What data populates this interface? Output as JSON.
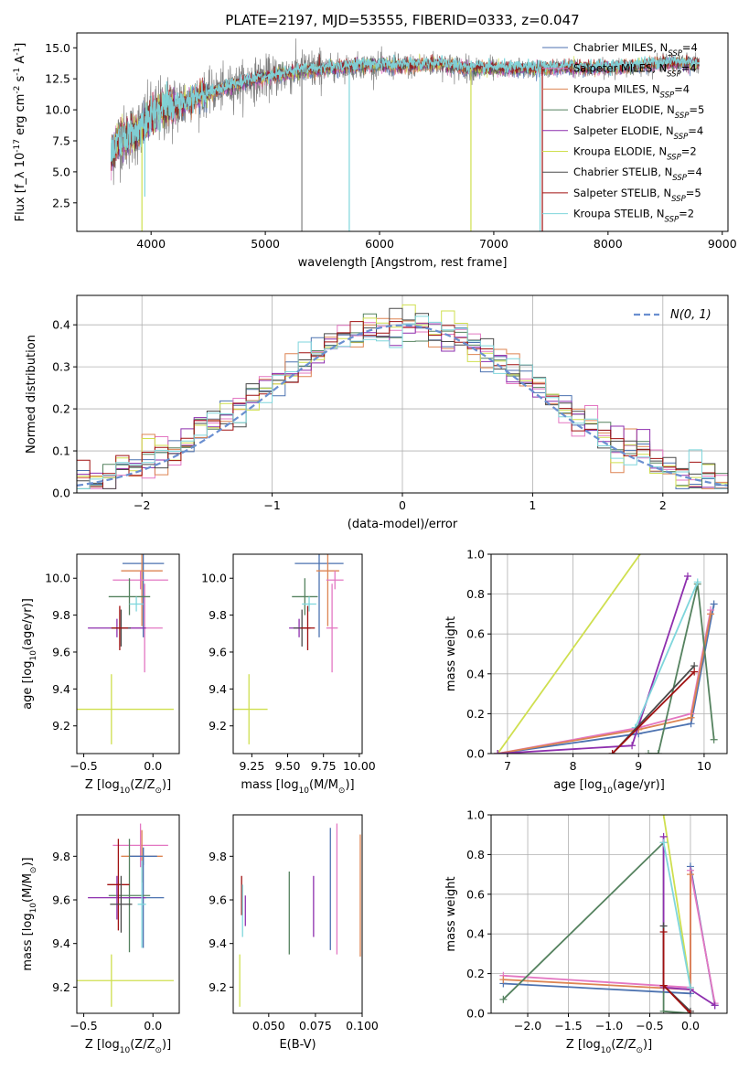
{
  "colors": {
    "chabrier_miles": "#4c72b0",
    "salpeter_miles": "#e377c2",
    "kroupa_miles": "#dd8452",
    "chabrier_elodie": "#55825f",
    "salpeter_elodie": "#8e2fae",
    "kroupa_elodie": "#cfdf4f",
    "chabrier_stelib": "#4a4a4a",
    "salpeter_stelib": "#a01010",
    "kroupa_stelib": "#7fd6dc",
    "gray_spectrum": "#808080",
    "normal": "#6a8fd0"
  },
  "chart_data": [
    {
      "type": "line",
      "title": "PLATE=2197, MJD=53555, FIBERID=0333, z=0.047",
      "xlabel": "wavelength [Angstrom, rest frame]",
      "ylabel": "Flux [f_λ 10^-17 erg cm^-2 s^-1 A^-1]",
      "xlim": [
        3350,
        9050
      ],
      "ylim": [
        0.2,
        16.2
      ],
      "xticks": [
        4000,
        5000,
        6000,
        7000,
        8000,
        9000
      ],
      "yticks": [
        2.5,
        5.0,
        7.5,
        10.0,
        12.5,
        15.0
      ],
      "xtick_labels": [
        "4000",
        "5000",
        "6000",
        "7000",
        "8000",
        "9000"
      ],
      "ytick_labels": [
        "2.5",
        "5.0",
        "7.5",
        "10.0",
        "12.5",
        "15.0"
      ],
      "legend_position": "top-right",
      "series": [
        {
          "name": "Chabrier MILES, N",
          "sub": "SSP",
          "suffix": "=4",
          "color_key": "chabrier_miles"
        },
        {
          "name": "Salpeter MILES, N",
          "sub": "SSP",
          "suffix": "=4",
          "color_key": "salpeter_miles"
        },
        {
          "name": "Kroupa MILES, N",
          "sub": "SSP",
          "suffix": "=4",
          "color_key": "kroupa_miles"
        },
        {
          "name": "Chabrier ELODIE, N",
          "sub": "SSP",
          "suffix": "=5",
          "color_key": "chabrier_elodie"
        },
        {
          "name": "Salpeter ELODIE, N",
          "sub": "SSP",
          "suffix": "=4",
          "color_key": "salpeter_elodie"
        },
        {
          "name": "Kroupa ELODIE, N",
          "sub": "SSP",
          "suffix": "=2",
          "color_key": "kroupa_elodie"
        },
        {
          "name": "Chabrier STELIB, N",
          "sub": "SSP",
          "suffix": "=4",
          "color_key": "chabrier_stelib"
        },
        {
          "name": "Salpeter STELIB, N",
          "sub": "SSP",
          "suffix": "=5",
          "color_key": "salpeter_stelib"
        },
        {
          "name": "Kroupa STELIB, N",
          "sub": "SSP",
          "suffix": "=2",
          "color_key": "kroupa_stelib"
        }
      ],
      "continuum_knots": [
        [
          3650,
          6.0
        ],
        [
          3700,
          7.5
        ],
        [
          3800,
          7.8
        ],
        [
          3900,
          8.4
        ],
        [
          4000,
          9.5
        ],
        [
          4100,
          10.0
        ],
        [
          4300,
          10.6
        ],
        [
          4500,
          11.3
        ],
        [
          4700,
          11.9
        ],
        [
          4850,
          12.3
        ],
        [
          5000,
          12.6
        ],
        [
          5300,
          13.1
        ],
        [
          5600,
          13.4
        ],
        [
          5900,
          13.6
        ],
        [
          6200,
          13.5
        ],
        [
          6500,
          13.7
        ],
        [
          6800,
          13.3
        ],
        [
          7100,
          13.3
        ],
        [
          7400,
          13.3
        ],
        [
          7600,
          13.4
        ],
        [
          7800,
          13.4
        ],
        [
          8000,
          13.4
        ],
        [
          8200,
          13.5
        ],
        [
          8500,
          13.8
        ],
        [
          8800,
          13.7
        ]
      ],
      "sharp_lines": [
        {
          "x": 3920,
          "y_low": 0.2,
          "color_key": "kroupa_elodie"
        },
        {
          "x": 3945,
          "y_low": 3.0,
          "color_key": "kroupa_stelib"
        },
        {
          "x": 5320,
          "y_low": 0.2,
          "color_key": "gray_spectrum"
        },
        {
          "x": 5735,
          "y_low": 0.2,
          "color_key": "kroupa_stelib"
        },
        {
          "x": 6800,
          "y_low": 0.2,
          "color_key": "kroupa_elodie"
        },
        {
          "x": 7405,
          "y_low": 0.2,
          "color_key": "kroupa_stelib"
        },
        {
          "x": 7425,
          "y_low": 0.2,
          "color_key": "salpeter_stelib"
        }
      ]
    },
    {
      "type": "histogram",
      "xlabel": "(data-model)/error",
      "ylabel": "Normed distribution",
      "xlim": [
        -2.5,
        2.5
      ],
      "ylim": [
        0,
        0.47
      ],
      "xticks": [
        -2,
        -1,
        0,
        1,
        2
      ],
      "xtick_labels": [
        "−2",
        "−1",
        "0",
        "1",
        "2"
      ],
      "yticks": [
        0.0,
        0.1,
        0.2,
        0.3,
        0.4
      ],
      "ytick_labels": [
        "0.0",
        "0.1",
        "0.2",
        "0.3",
        "0.4"
      ],
      "grid": true,
      "legend_position": "top-right",
      "legend_label": "N(0, 1)",
      "bin_width": 0.1,
      "bin_start": -2.5,
      "n_bins": 50,
      "reference_curve": "normal pdf, mean 0, sigma 1",
      "series_color_keys": [
        "chabrier_miles",
        "salpeter_miles",
        "kroupa_miles",
        "chabrier_elodie",
        "salpeter_elodie",
        "kroupa_elodie",
        "chabrier_stelib",
        "salpeter_stelib",
        "kroupa_stelib"
      ]
    },
    {
      "type": "errorbar",
      "xlabel": "Z [log10(Z/Z⊙)]",
      "ylabel": "age  [log10(age/yr)]",
      "xlim": [
        -0.55,
        0.19
      ],
      "ylim": [
        9.05,
        10.13
      ],
      "xticks": [
        -0.5,
        0.0
      ],
      "xtick_labels": [
        "−0.5",
        "0.0"
      ],
      "yticks": [
        9.2,
        9.4,
        9.6,
        9.8,
        10.0
      ],
      "ytick_labels": [
        "9.2",
        "9.4",
        "9.6",
        "9.8",
        "10.0"
      ],
      "points": [
        {
          "x": -0.3,
          "y": 9.29,
          "xerr": 0.45,
          "yerr": 0.19,
          "color_key": "kroupa_elodie"
        },
        {
          "x": -0.06,
          "y": 9.73,
          "xerr": 0.13,
          "yerr": 0.24,
          "color_key": "salpeter_miles"
        },
        {
          "x": -0.07,
          "y": 10.08,
          "xerr": 0.15,
          "yerr": 0.4,
          "color_key": "chabrier_miles"
        },
        {
          "x": -0.08,
          "y": 10.04,
          "xerr": 0.15,
          "yerr": 0.3,
          "color_key": "kroupa_miles"
        },
        {
          "x": -0.09,
          "y": 9.99,
          "xerr": 0.2,
          "yerr": 0.05,
          "color_key": "salpeter_miles"
        },
        {
          "x": -0.17,
          "y": 9.9,
          "xerr": 0.15,
          "yerr": 0.1,
          "color_key": "chabrier_elodie"
        },
        {
          "x": -0.12,
          "y": 9.86,
          "xerr": 0.05,
          "yerr": 0.04,
          "color_key": "kroupa_stelib"
        },
        {
          "x": -0.26,
          "y": 9.73,
          "xerr": 0.21,
          "yerr": 0.05,
          "color_key": "salpeter_elodie"
        },
        {
          "x": -0.23,
          "y": 9.73,
          "xerr": 0.07,
          "yerr": 0.1,
          "color_key": "chabrier_stelib"
        },
        {
          "x": -0.24,
          "y": 9.73,
          "xerr": 0.06,
          "yerr": 0.12,
          "color_key": "salpeter_stelib"
        }
      ]
    },
    {
      "type": "errorbar",
      "xlabel": "mass [log10(M/M⊙)]",
      "xlim": [
        9.12,
        10.02
      ],
      "ylim": [
        9.05,
        10.13
      ],
      "xticks": [
        9.25,
        9.5,
        9.75,
        10.0
      ],
      "xtick_labels": [
        "9.25",
        "9.50",
        "9.75",
        "10.00"
      ],
      "yticks": [
        9.2,
        9.4,
        9.6,
        9.8,
        10.0
      ],
      "ytick_labels": [
        "9.2",
        "9.4",
        "9.6",
        "9.8",
        "10.0"
      ],
      "points": [
        {
          "x": 9.23,
          "y": 9.29,
          "xerr": 0.13,
          "yerr": 0.19,
          "color_key": "kroupa_elodie"
        },
        {
          "x": 9.81,
          "y": 9.73,
          "xerr": 0.04,
          "yerr": 0.24,
          "color_key": "salpeter_miles"
        },
        {
          "x": 9.72,
          "y": 10.08,
          "xerr": 0.17,
          "yerr": 0.4,
          "color_key": "chabrier_miles"
        },
        {
          "x": 9.78,
          "y": 10.04,
          "xerr": 0.08,
          "yerr": 0.3,
          "color_key": "kroupa_miles"
        },
        {
          "x": 9.83,
          "y": 9.99,
          "xerr": 0.06,
          "yerr": 0.05,
          "color_key": "salpeter_miles"
        },
        {
          "x": 9.62,
          "y": 9.9,
          "xerr": 0.09,
          "yerr": 0.1,
          "color_key": "chabrier_elodie"
        },
        {
          "x": 9.65,
          "y": 9.86,
          "xerr": 0.05,
          "yerr": 0.04,
          "color_key": "kroupa_stelib"
        },
        {
          "x": 9.58,
          "y": 9.73,
          "xerr": 0.07,
          "yerr": 0.05,
          "color_key": "salpeter_elodie"
        },
        {
          "x": 9.6,
          "y": 9.73,
          "xerr": 0.06,
          "yerr": 0.1,
          "color_key": "chabrier_stelib"
        },
        {
          "x": 9.64,
          "y": 9.73,
          "xerr": 0.05,
          "yerr": 0.12,
          "color_key": "salpeter_stelib"
        }
      ]
    },
    {
      "type": "line",
      "xlabel": "age  [log10(age/yr)]",
      "ylabel": "mass weight",
      "xlim": [
        6.75,
        10.35
      ],
      "ylim": [
        0.0,
        1.0
      ],
      "xticks": [
        7,
        8,
        9,
        10
      ],
      "xtick_labels": [
        "7",
        "8",
        "9",
        "10"
      ],
      "yticks": [
        0.0,
        0.2,
        0.4,
        0.6,
        0.8,
        1.0
      ],
      "ytick_labels": [
        "0.0",
        "0.2",
        "0.4",
        "0.6",
        "0.8",
        "1.0"
      ],
      "grid": true,
      "series": [
        {
          "color_key": "kroupa_elodie",
          "x": [
            6.85,
            9.35
          ],
          "y": [
            0.0,
            1.15
          ]
        },
        {
          "color_key": "chabrier_miles",
          "x": [
            6.85,
            9.0,
            9.8,
            10.15
          ],
          "y": [
            0.0,
            0.1,
            0.15,
            0.75
          ]
        },
        {
          "color_key": "salpeter_miles",
          "x": [
            6.85,
            9.0,
            9.8,
            10.1
          ],
          "y": [
            0.0,
            0.13,
            0.2,
            0.72
          ]
        },
        {
          "color_key": "kroupa_miles",
          "x": [
            6.85,
            9.0,
            9.8,
            10.1
          ],
          "y": [
            0.0,
            0.12,
            0.18,
            0.7
          ]
        },
        {
          "color_key": "chabrier_elodie",
          "x": [
            9.15,
            9.3,
            9.9,
            10.15
          ],
          "y": [
            0.0,
            0.0,
            0.85,
            0.07
          ]
        },
        {
          "color_key": "salpeter_elodie",
          "x": [
            6.85,
            8.9,
            9.75
          ],
          "y": [
            0.0,
            0.04,
            0.89
          ]
        },
        {
          "color_key": "kroupa_stelib",
          "x": [
            8.95,
            9.9
          ],
          "y": [
            0.13,
            0.86
          ]
        },
        {
          "color_key": "chabrier_stelib",
          "x": [
            8.6,
            9.85
          ],
          "y": [
            0.0,
            0.44
          ]
        },
        {
          "color_key": "salpeter_stelib",
          "x": [
            8.6,
            9.85
          ],
          "y": [
            0.0,
            0.41
          ]
        }
      ]
    },
    {
      "type": "errorbar",
      "xlabel": "Z [log10(Z/Z⊙)]",
      "ylabel": "mass [log10(M/M⊙)]",
      "xlim": [
        -0.55,
        0.19
      ],
      "ylim": [
        9.08,
        9.99
      ],
      "xticks": [
        -0.5,
        0.0
      ],
      "xtick_labels": [
        "−0.5",
        "0.0"
      ],
      "yticks": [
        9.2,
        9.4,
        9.6,
        9.8
      ],
      "ytick_labels": [
        "9.2",
        "9.4",
        "9.6",
        "9.8"
      ],
      "points": [
        {
          "x": -0.3,
          "y": 9.23,
          "xerr": 0.45,
          "yerr": 0.12,
          "color_key": "kroupa_elodie"
        },
        {
          "x": -0.07,
          "y": 9.61,
          "xerr": 0.15,
          "yerr": 0.23,
          "color_key": "chabrier_miles"
        },
        {
          "x": -0.09,
          "y": 9.85,
          "xerr": 0.2,
          "yerr": 0.1,
          "color_key": "salpeter_miles"
        },
        {
          "x": -0.08,
          "y": 9.8,
          "xerr": 0.15,
          "yerr": 0.12,
          "color_key": "kroupa_miles"
        },
        {
          "x": -0.07,
          "y": 9.8,
          "xerr": 0.1,
          "yerr": 0.04,
          "color_key": "chabrier_miles"
        },
        {
          "x": -0.17,
          "y": 9.62,
          "xerr": 0.15,
          "yerr": 0.26,
          "color_key": "chabrier_elodie"
        },
        {
          "x": -0.26,
          "y": 9.61,
          "xerr": 0.21,
          "yerr": 0.1,
          "color_key": "salpeter_elodie"
        },
        {
          "x": -0.25,
          "y": 9.67,
          "xerr": 0.08,
          "yerr": 0.21,
          "color_key": "salpeter_stelib"
        },
        {
          "x": -0.23,
          "y": 9.58,
          "xerr": 0.08,
          "yerr": 0.13,
          "color_key": "chabrier_stelib"
        },
        {
          "x": -0.08,
          "y": 9.58,
          "xerr": 0.03,
          "yerr": 0.2,
          "color_key": "kroupa_stelib"
        }
      ]
    },
    {
      "type": "errorbar",
      "xlabel": "E(B-V)",
      "xlim": [
        0.031,
        0.1
      ],
      "ylim": [
        9.08,
        9.99
      ],
      "xticks": [
        0.05,
        0.075,
        0.1
      ],
      "xtick_labels": [
        "0.050",
        "0.075",
        "0.100"
      ],
      "yticks": [
        9.2,
        9.4,
        9.6,
        9.8
      ],
      "ytick_labels": [
        "9.2",
        "9.4",
        "9.6",
        "9.8"
      ],
      "points": [
        {
          "x": 0.0345,
          "y": 9.23,
          "xerr": 0.0,
          "yerr": 0.12,
          "color_key": "kroupa_elodie"
        },
        {
          "x": 0.0355,
          "y": 9.62,
          "xerr": 0.0,
          "yerr": 0.09,
          "color_key": "salpeter_stelib"
        },
        {
          "x": 0.036,
          "y": 9.55,
          "xerr": 0.0,
          "yerr": 0.12,
          "color_key": "kroupa_stelib"
        },
        {
          "x": 0.0375,
          "y": 9.55,
          "xerr": 0.0,
          "yerr": 0.07,
          "color_key": "salpeter_elodie"
        },
        {
          "x": 0.061,
          "y": 9.54,
          "xerr": 0.0,
          "yerr": 0.19,
          "color_key": "chabrier_elodie"
        },
        {
          "x": 0.074,
          "y": 9.57,
          "xerr": 0.0,
          "yerr": 0.14,
          "color_key": "salpeter_elodie"
        },
        {
          "x": 0.083,
          "y": 9.65,
          "xerr": 0.0,
          "yerr": 0.28,
          "color_key": "chabrier_miles"
        },
        {
          "x": 0.0865,
          "y": 9.65,
          "xerr": 0.0,
          "yerr": 0.3,
          "color_key": "salpeter_miles"
        },
        {
          "x": 0.099,
          "y": 9.62,
          "xerr": 0.0,
          "yerr": 0.28,
          "color_key": "kroupa_miles"
        }
      ]
    },
    {
      "type": "line",
      "xlabel": "Z [log10(Z/Z⊙)]",
      "ylabel": "mass weight",
      "xlim": [
        -2.45,
        0.45
      ],
      "ylim": [
        0.0,
        1.0
      ],
      "xticks": [
        -2.0,
        -1.5,
        -1.0,
        -0.5,
        0.0
      ],
      "xtick_labels": [
        "−2.0",
        "−1.5",
        "−1.0",
        "−0.5",
        "0.0"
      ],
      "yticks": [
        0.0,
        0.2,
        0.4,
        0.6,
        0.8,
        1.0
      ],
      "ytick_labels": [
        "0.0",
        "0.2",
        "0.4",
        "0.6",
        "0.8",
        "1.0"
      ],
      "grid": true,
      "series": [
        {
          "color_key": "kroupa_elodie",
          "x": [
            -0.33,
            0.0
          ],
          "y": [
            1.0,
            0.13
          ]
        },
        {
          "color_key": "chabrier_miles",
          "x": [
            -2.3,
            0.0,
            0.0,
            0.3
          ],
          "y": [
            0.15,
            0.1,
            0.74,
            0.04
          ]
        },
        {
          "color_key": "salpeter_miles",
          "x": [
            -2.3,
            0.0,
            0.0,
            0.3
          ],
          "y": [
            0.19,
            0.13,
            0.72,
            0.05
          ]
        },
        {
          "color_key": "kroupa_miles",
          "x": [
            -2.3,
            0.0,
            0.0
          ],
          "y": [
            0.17,
            0.12,
            0.7
          ]
        },
        {
          "color_key": "chabrier_elodie",
          "x": [
            -2.3,
            -0.33,
            -0.33,
            0.0
          ],
          "y": [
            0.07,
            0.86,
            0.01,
            0.0
          ]
        },
        {
          "color_key": "salpeter_elodie",
          "x": [
            -0.33,
            -0.33,
            0.0,
            0.3
          ],
          "y": [
            0.89,
            0.13,
            0.12,
            0.04
          ]
        },
        {
          "color_key": "kroupa_stelib",
          "x": [
            -0.33,
            0.0
          ],
          "y": [
            0.86,
            0.13
          ]
        },
        {
          "color_key": "chabrier_stelib",
          "x": [
            -0.33,
            -0.33,
            0.0
          ],
          "y": [
            0.44,
            0.14,
            0.01
          ]
        },
        {
          "color_key": "salpeter_stelib",
          "x": [
            -0.33,
            -0.33,
            0.0
          ],
          "y": [
            0.41,
            0.14,
            0.0
          ]
        }
      ]
    }
  ]
}
